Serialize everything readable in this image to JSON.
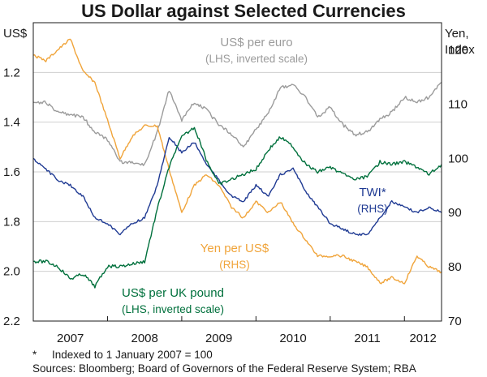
{
  "chart_data": {
    "type": "line",
    "title": "US Dollar against Selected Currencies",
    "left_axis": {
      "unit": "US$",
      "inverted": true,
      "ylim": [
        1.0,
        2.2
      ],
      "ticks": [
        "1.2",
        "1.4",
        "1.6",
        "1.8",
        "2.0",
        "2.2"
      ]
    },
    "right_axis": {
      "unit_line1": "Yen,",
      "unit_line2": "Index",
      "ylim": [
        70,
        125
      ],
      "ticks": [
        "70",
        "80",
        "90",
        "100",
        "110",
        "120"
      ]
    },
    "x_axis": {
      "range": [
        "2007-01",
        "2012-07"
      ],
      "ticks": [
        "2007",
        "2008",
        "2009",
        "2010",
        "2011",
        "2012"
      ]
    },
    "series": [
      {
        "name": "US$ per euro",
        "axis": "left",
        "color": "#9b9b9b",
        "label_line1": "US$ per euro",
        "label_line2": "(LHS, inverted scale)",
        "points": [
          [
            2007.0,
            1.32
          ],
          [
            2007.17,
            1.32
          ],
          [
            2007.33,
            1.36
          ],
          [
            2007.5,
            1.37
          ],
          [
            2007.67,
            1.38
          ],
          [
            2007.83,
            1.44
          ],
          [
            2008.0,
            1.47
          ],
          [
            2008.17,
            1.56
          ],
          [
            2008.33,
            1.56
          ],
          [
            2008.5,
            1.57
          ],
          [
            2008.67,
            1.44
          ],
          [
            2008.83,
            1.27
          ],
          [
            2009.0,
            1.39
          ],
          [
            2009.17,
            1.32
          ],
          [
            2009.33,
            1.35
          ],
          [
            2009.5,
            1.41
          ],
          [
            2009.67,
            1.45
          ],
          [
            2009.83,
            1.5
          ],
          [
            2010.0,
            1.43
          ],
          [
            2010.17,
            1.36
          ],
          [
            2010.33,
            1.26
          ],
          [
            2010.5,
            1.25
          ],
          [
            2010.67,
            1.3
          ],
          [
            2010.83,
            1.38
          ],
          [
            2011.0,
            1.34
          ],
          [
            2011.17,
            1.41
          ],
          [
            2011.33,
            1.45
          ],
          [
            2011.5,
            1.44
          ],
          [
            2011.67,
            1.39
          ],
          [
            2011.83,
            1.36
          ],
          [
            2012.0,
            1.3
          ],
          [
            2012.17,
            1.32
          ],
          [
            2012.33,
            1.3
          ],
          [
            2012.5,
            1.24
          ]
        ]
      },
      {
        "name": "Yen per US$",
        "axis": "right",
        "color": "#f0a43a",
        "label_line1": "Yen per US$",
        "label_line2": "(RHS)",
        "points": [
          [
            2007.0,
            119
          ],
          [
            2007.17,
            118
          ],
          [
            2007.33,
            120
          ],
          [
            2007.5,
            122
          ],
          [
            2007.67,
            116
          ],
          [
            2007.83,
            114
          ],
          [
            2008.0,
            107
          ],
          [
            2008.17,
            100
          ],
          [
            2008.33,
            104
          ],
          [
            2008.5,
            106
          ],
          [
            2008.67,
            106
          ],
          [
            2008.83,
            98
          ],
          [
            2009.0,
            90
          ],
          [
            2009.17,
            95
          ],
          [
            2009.33,
            97
          ],
          [
            2009.5,
            95
          ],
          [
            2009.67,
            91
          ],
          [
            2009.83,
            89
          ],
          [
            2010.0,
            92
          ],
          [
            2010.17,
            90
          ],
          [
            2010.33,
            92
          ],
          [
            2010.5,
            88
          ],
          [
            2010.67,
            85
          ],
          [
            2010.83,
            82
          ],
          [
            2011.0,
            82
          ],
          [
            2011.17,
            82
          ],
          [
            2011.33,
            81
          ],
          [
            2011.5,
            80
          ],
          [
            2011.67,
            77
          ],
          [
            2011.83,
            78
          ],
          [
            2012.0,
            77
          ],
          [
            2012.17,
            82
          ],
          [
            2012.33,
            80
          ],
          [
            2012.5,
            79
          ]
        ]
      },
      {
        "name": "TWI*",
        "axis": "right",
        "color": "#1f3a93",
        "label_line1": "TWI*",
        "label_line2": "(RHS)",
        "points": [
          [
            2007.0,
            100
          ],
          [
            2007.17,
            98
          ],
          [
            2007.33,
            96
          ],
          [
            2007.5,
            95
          ],
          [
            2007.67,
            93
          ],
          [
            2007.83,
            89
          ],
          [
            2008.0,
            88
          ],
          [
            2008.17,
            86
          ],
          [
            2008.33,
            88
          ],
          [
            2008.5,
            89
          ],
          [
            2008.67,
            95
          ],
          [
            2008.83,
            104
          ],
          [
            2009.0,
            101
          ],
          [
            2009.17,
            103
          ],
          [
            2009.33,
            99
          ],
          [
            2009.5,
            96
          ],
          [
            2009.67,
            93
          ],
          [
            2009.83,
            92
          ],
          [
            2010.0,
            95
          ],
          [
            2010.17,
            93
          ],
          [
            2010.33,
            97
          ],
          [
            2010.5,
            98
          ],
          [
            2010.67,
            94
          ],
          [
            2010.83,
            91
          ],
          [
            2011.0,
            88
          ],
          [
            2011.17,
            87
          ],
          [
            2011.33,
            86
          ],
          [
            2011.5,
            86
          ],
          [
            2011.67,
            89
          ],
          [
            2011.83,
            92
          ],
          [
            2012.0,
            91
          ],
          [
            2012.17,
            90
          ],
          [
            2012.33,
            91
          ],
          [
            2012.5,
            90
          ]
        ]
      },
      {
        "name": "US$ per UK pound",
        "axis": "left",
        "color": "#00703c",
        "label_line1": "US$ per UK pound",
        "label_line2": "(LHS, inverted scale)",
        "points": [
          [
            2007.0,
            1.96
          ],
          [
            2007.17,
            1.96
          ],
          [
            2007.33,
            1.98
          ],
          [
            2007.5,
            2.03
          ],
          [
            2007.67,
            2.01
          ],
          [
            2007.83,
            2.06
          ],
          [
            2008.0,
            1.98
          ],
          [
            2008.17,
            1.98
          ],
          [
            2008.33,
            1.97
          ],
          [
            2008.5,
            1.96
          ],
          [
            2008.67,
            1.75
          ],
          [
            2008.83,
            1.58
          ],
          [
            2009.0,
            1.46
          ],
          [
            2009.17,
            1.42
          ],
          [
            2009.33,
            1.55
          ],
          [
            2009.5,
            1.65
          ],
          [
            2009.67,
            1.63
          ],
          [
            2009.83,
            1.61
          ],
          [
            2010.0,
            1.59
          ],
          [
            2010.17,
            1.51
          ],
          [
            2010.33,
            1.46
          ],
          [
            2010.5,
            1.5
          ],
          [
            2010.67,
            1.57
          ],
          [
            2010.83,
            1.6
          ],
          [
            2011.0,
            1.58
          ],
          [
            2011.17,
            1.61
          ],
          [
            2011.33,
            1.63
          ],
          [
            2011.5,
            1.62
          ],
          [
            2011.67,
            1.56
          ],
          [
            2011.83,
            1.57
          ],
          [
            2012.0,
            1.56
          ],
          [
            2012.17,
            1.58
          ],
          [
            2012.33,
            1.61
          ],
          [
            2012.5,
            1.57
          ]
        ]
      }
    ]
  },
  "footnote": "*     Indexed to 1 January 2007 = 100",
  "sources": "Sources: Bloomberg; Board of Governors of the Federal Reserve System; RBA"
}
